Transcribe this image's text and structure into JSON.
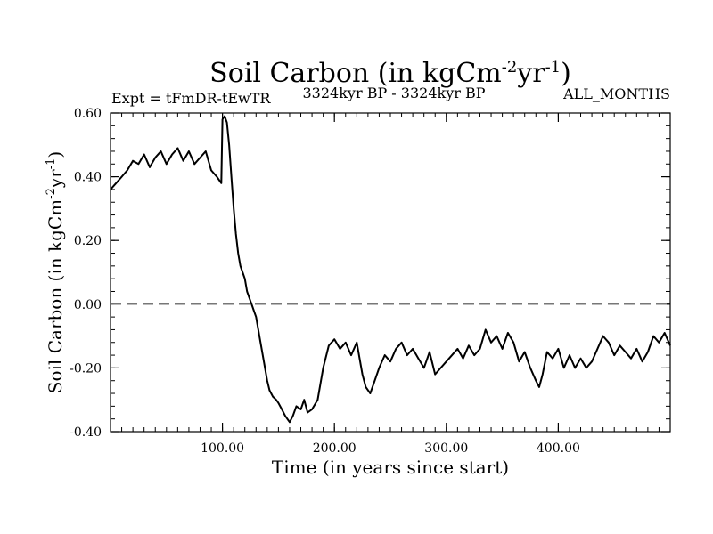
{
  "chart_data": {
    "type": "line",
    "title_main": "Soil Carbon (in kgCm",
    "title_sup1": "-2",
    "title_mid": "yr",
    "title_sup2": "-1",
    "title_end": ")",
    "subtitle_left": "Expt = tFmDR-tEwTR",
    "subtitle_center": "3324kyr BP - 3324kyr BP",
    "subtitle_right": "ALL_MONTHS",
    "xlabel": "Time (in years since start)",
    "ylabel_main": "Soil Carbon (in kgCm",
    "ylabel_sup1": "-2",
    "ylabel_mid": "yr",
    "ylabel_sup2": "-1",
    "ylabel_end": ")",
    "xlim": [
      0,
      500
    ],
    "ylim": [
      -0.4,
      0.6
    ],
    "x_ticks": [
      100,
      200,
      300,
      400
    ],
    "x_tick_labels": [
      "100.00",
      "200.00",
      "300.00",
      "400.00"
    ],
    "y_ticks": [
      -0.4,
      -0.2,
      0.0,
      0.2,
      0.4,
      0.6
    ],
    "y_tick_labels": [
      "-0.40",
      "-0.20",
      "0.00",
      "0.20",
      "0.40",
      "0.60"
    ],
    "reference_line": {
      "y": 0.0,
      "style": "dashed"
    },
    "series": [
      {
        "name": "Soil Carbon",
        "x": [
          0,
          5,
          10,
          15,
          20,
          25,
          30,
          35,
          40,
          45,
          50,
          55,
          60,
          65,
          70,
          75,
          80,
          85,
          90,
          95,
          99,
          100,
          102,
          104,
          106,
          108,
          110,
          112,
          114,
          116,
          118,
          120,
          122,
          124,
          126,
          128,
          130,
          132,
          134,
          136,
          138,
          140,
          142,
          145,
          148,
          150,
          153,
          156,
          158,
          160,
          163,
          166,
          170,
          173,
          176,
          180,
          185,
          190,
          195,
          200,
          205,
          210,
          215,
          220,
          225,
          228,
          232,
          235,
          240,
          245,
          250,
          255,
          260,
          265,
          270,
          275,
          280,
          285,
          290,
          295,
          300,
          305,
          310,
          315,
          320,
          325,
          330,
          335,
          340,
          345,
          350,
          355,
          360,
          365,
          370,
          375,
          380,
          383,
          386,
          390,
          395,
          400,
          405,
          410,
          415,
          420,
          425,
          430,
          435,
          440,
          445,
          450,
          455,
          460,
          465,
          470,
          475,
          480,
          485,
          490,
          495,
          500
        ],
        "y": [
          0.36,
          0.38,
          0.4,
          0.42,
          0.45,
          0.44,
          0.47,
          0.43,
          0.46,
          0.48,
          0.44,
          0.47,
          0.49,
          0.45,
          0.48,
          0.44,
          0.46,
          0.48,
          0.42,
          0.4,
          0.38,
          0.58,
          0.59,
          0.57,
          0.5,
          0.4,
          0.3,
          0.22,
          0.16,
          0.12,
          0.1,
          0.08,
          0.04,
          0.02,
          0.0,
          -0.02,
          -0.04,
          -0.08,
          -0.12,
          -0.16,
          -0.2,
          -0.24,
          -0.27,
          -0.29,
          -0.3,
          -0.31,
          -0.33,
          -0.35,
          -0.36,
          -0.37,
          -0.35,
          -0.32,
          -0.33,
          -0.3,
          -0.34,
          -0.33,
          -0.3,
          -0.2,
          -0.13,
          -0.11,
          -0.14,
          -0.12,
          -0.16,
          -0.12,
          -0.22,
          -0.26,
          -0.28,
          -0.25,
          -0.2,
          -0.16,
          -0.18,
          -0.14,
          -0.12,
          -0.16,
          -0.14,
          -0.17,
          -0.2,
          -0.15,
          -0.22,
          -0.2,
          -0.18,
          -0.16,
          -0.14,
          -0.17,
          -0.13,
          -0.16,
          -0.14,
          -0.08,
          -0.12,
          -0.1,
          -0.14,
          -0.09,
          -0.12,
          -0.18,
          -0.15,
          -0.2,
          -0.24,
          -0.26,
          -0.22,
          -0.15,
          -0.17,
          -0.14,
          -0.2,
          -0.16,
          -0.2,
          -0.17,
          -0.2,
          -0.18,
          -0.14,
          -0.1,
          -0.12,
          -0.16,
          -0.13,
          -0.15,
          -0.17,
          -0.14,
          -0.18,
          -0.15,
          -0.1,
          -0.12,
          -0.09,
          -0.13
        ]
      }
    ]
  }
}
